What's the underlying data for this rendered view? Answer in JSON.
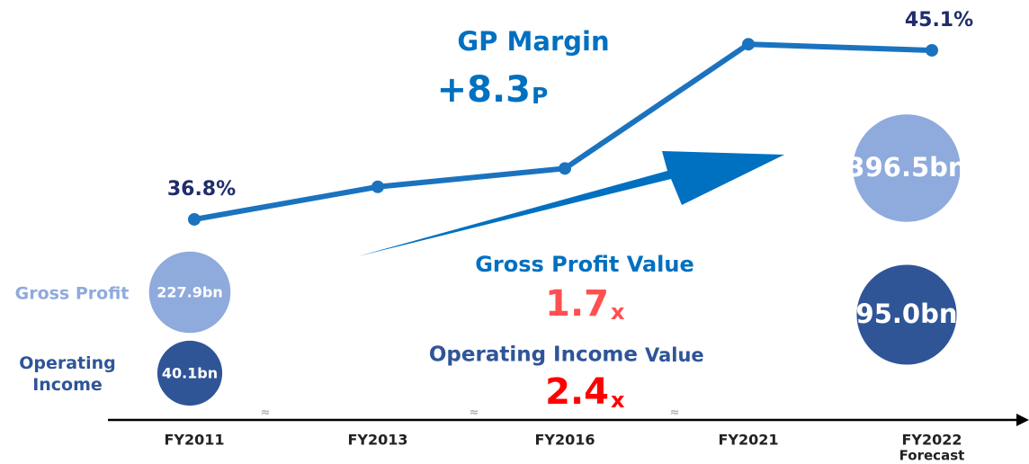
{
  "chart_data": {
    "type": "line",
    "categories": [
      "FY2011",
      "FY2013",
      "FY2016",
      "FY2021",
      "FY2022"
    ],
    "category_note": "Forecast",
    "series": [
      {
        "name": "GP Margin",
        "color": "#1b73bf",
        "values": [
          36.8,
          38.4,
          39.3,
          45.4,
          45.1
        ],
        "value_labels": [
          "36.8%",
          null,
          null,
          null,
          "45.1%"
        ]
      }
    ],
    "ylim": [
      34,
      46
    ],
    "bubbles": [
      {
        "name": "Gross Profit",
        "color": "#8faadc",
        "categories": [
          "FY2011",
          "FY2022"
        ],
        "values": [
          227.9,
          396.5
        ],
        "value_labels": [
          "227.9bn",
          "396.5bn"
        ]
      },
      {
        "name": "Operating Income",
        "color": "#2f5597",
        "categories": [
          "FY2011",
          "FY2022"
        ],
        "values": [
          40.1,
          95.0
        ],
        "value_labels": [
          "40.1bn",
          "95.0bn"
        ]
      }
    ],
    "annotations": [
      {
        "text": "GP Margin",
        "value": "+8.3",
        "unit": "P"
      },
      {
        "text": "Gross Profit Value",
        "value": "1.7",
        "unit": "x"
      },
      {
        "text": "Operating Income",
        "suffix": "Value",
        "value": "2.4",
        "unit": "x"
      }
    ]
  }
}
